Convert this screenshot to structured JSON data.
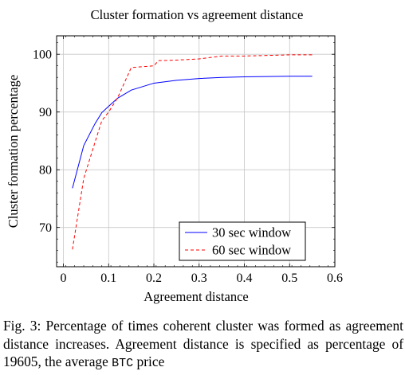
{
  "chart_data": {
    "type": "line",
    "title": "Cluster formation vs agreement distance",
    "xlabel": "Agreement distance",
    "ylabel": "Cluster formation percentage",
    "xlim": [
      -0.015,
      0.6
    ],
    "ylim": [
      63.2,
      103.2
    ],
    "xticks": [
      0,
      0.1,
      0.2,
      0.3,
      0.4,
      0.5,
      0.6
    ],
    "xtick_labels": [
      "0",
      "0.1",
      "0.2",
      "0.3",
      "0.4",
      "0.5",
      "0.6"
    ],
    "yticks": [
      70,
      80,
      90,
      100
    ],
    "ytick_labels": [
      "70",
      "80",
      "90",
      "100"
    ],
    "grid": true,
    "legend_position": "bottom-right",
    "series": [
      {
        "name": "30 sec window",
        "color": "#0000ff",
        "style": "solid",
        "x": [
          0.02,
          0.045,
          0.07,
          0.085,
          0.1,
          0.12,
          0.15,
          0.2,
          0.25,
          0.3,
          0.35,
          0.4,
          0.45,
          0.5,
          0.55
        ],
        "y": [
          76.8,
          84.2,
          88.0,
          89.9,
          91.0,
          92.4,
          93.8,
          95.0,
          95.5,
          95.8,
          96.0,
          96.1,
          96.15,
          96.2,
          96.2
        ]
      },
      {
        "name": "60 sec window",
        "color": "#ff0000",
        "style": "dashed",
        "x": [
          0.02,
          0.045,
          0.07,
          0.085,
          0.1,
          0.12,
          0.15,
          0.2,
          0.21,
          0.25,
          0.3,
          0.35,
          0.4,
          0.45,
          0.5,
          0.55
        ],
        "y": [
          66.2,
          78.5,
          84.8,
          88.5,
          90.0,
          92.5,
          97.7,
          98.0,
          98.9,
          99.0,
          99.2,
          99.7,
          99.7,
          99.8,
          99.9,
          99.9
        ]
      }
    ]
  },
  "caption": {
    "text_before": "Fig. 3: Percentage of times coherent cluster was formed as agreement distance increases. Agreement distance is specified as percentage of 19605, the average ",
    "mono": "BTC",
    "text_after": " price"
  }
}
